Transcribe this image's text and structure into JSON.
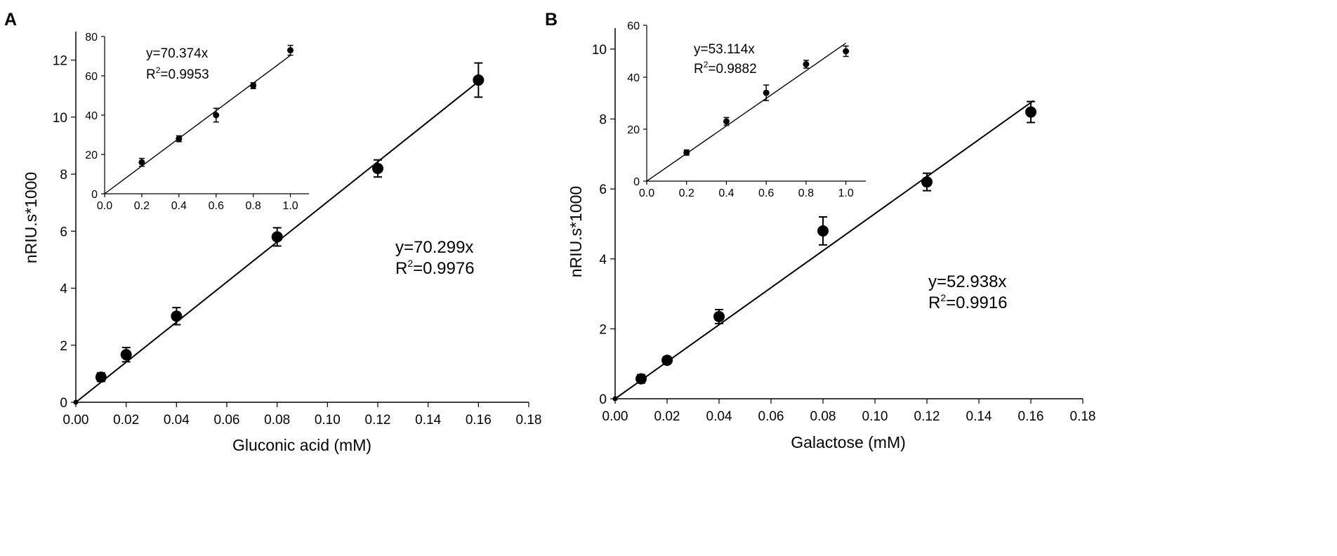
{
  "chart_data": [
    {
      "type": "scatter",
      "panel_label": "A",
      "xlabel": "Gluconic acid (mM)",
      "ylabel": "nRIU.s*1000",
      "xlim": [
        0.0,
        0.18
      ],
      "ylim": [
        0,
        13
      ],
      "x_ticks": [
        "0.00",
        "0.02",
        "0.04",
        "0.06",
        "0.08",
        "0.10",
        "0.12",
        "0.14",
        "0.16",
        "0.18"
      ],
      "y_ticks": [
        "0",
        "2",
        "4",
        "6",
        "8",
        "10",
        "12"
      ],
      "x_tick_values": [
        0,
        0.02,
        0.04,
        0.06,
        0.08,
        0.1,
        0.12,
        0.14,
        0.16,
        0.18
      ],
      "y_tick_values": [
        0,
        2,
        4,
        6,
        8,
        10,
        12
      ],
      "x": [
        0,
        0.01,
        0.02,
        0.04,
        0.08,
        0.12,
        0.16
      ],
      "y": [
        0,
        0.88,
        1.67,
        3.02,
        5.8,
        8.2,
        11.3
      ],
      "y_err": [
        0,
        0.15,
        0.25,
        0.3,
        0.32,
        0.3,
        0.6
      ],
      "fit": {
        "slope": 70.299,
        "x_range": [
          0,
          0.161
        ]
      },
      "equation": "y=70.299x",
      "r2_prefix": "R",
      "r2_sup": "2",
      "r2_value": "=0.9976",
      "inset": {
        "xlim": [
          0.0,
          1.1
        ],
        "ylim": [
          0,
          80
        ],
        "x_ticks": [
          "0.0",
          "0.2",
          "0.4",
          "0.6",
          "0.8",
          "1.0"
        ],
        "y_ticks": [
          "0",
          "20",
          "40",
          "60",
          "80"
        ],
        "x_tick_values": [
          0,
          0.2,
          0.4,
          0.6,
          0.8,
          1.0
        ],
        "y_tick_values": [
          0,
          20,
          40,
          60,
          80
        ],
        "x": [
          0.2,
          0.4,
          0.6,
          0.8,
          1.0
        ],
        "y": [
          16,
          28,
          40,
          55,
          73
        ],
        "y_err": [
          2,
          1.5,
          3.5,
          1.5,
          2.5
        ],
        "fit": {
          "slope": 70.374,
          "x_range": [
            0,
            1.0
          ]
        },
        "equation": "y=70.374x",
        "r2_prefix": "R",
        "r2_sup": "2",
        "r2_value": "=0.9953"
      }
    },
    {
      "type": "scatter",
      "panel_label": "B",
      "xlabel": "Galactose (mM)",
      "ylabel": "nRIU.s*1000",
      "xlim": [
        0.0,
        0.18
      ],
      "ylim": [
        0,
        10.6
      ],
      "x_ticks": [
        "0.00",
        "0.02",
        "0.04",
        "0.06",
        "0.08",
        "0.10",
        "0.12",
        "0.14",
        "0.16",
        "0.18"
      ],
      "y_ticks": [
        "0",
        "2",
        "4",
        "6",
        "8",
        "10"
      ],
      "x_tick_values": [
        0,
        0.02,
        0.04,
        0.06,
        0.08,
        0.1,
        0.12,
        0.14,
        0.16,
        0.18
      ],
      "y_tick_values": [
        0,
        2,
        4,
        6,
        8,
        10
      ],
      "x": [
        0,
        0.01,
        0.02,
        0.04,
        0.08,
        0.12,
        0.16
      ],
      "y": [
        0,
        0.57,
        1.1,
        2.35,
        4.8,
        6.2,
        8.2
      ],
      "y_err": [
        0,
        0.12,
        0.1,
        0.2,
        0.4,
        0.25,
        0.3
      ],
      "fit": {
        "slope": 52.938,
        "x_range": [
          0,
          0.161
        ]
      },
      "equation": "y=52.938x",
      "r2_prefix": "R",
      "r2_sup": "2",
      "r2_value": "=0.9916",
      "inset": {
        "xlim": [
          0.0,
          1.1
        ],
        "ylim": [
          0,
          60
        ],
        "x_ticks": [
          "0.0",
          "0.2",
          "0.4",
          "0.6",
          "0.8",
          "1.0"
        ],
        "y_ticks": [
          "0",
          "20",
          "40",
          "60"
        ],
        "x_tick_values": [
          0,
          0.2,
          0.4,
          0.6,
          0.8,
          1.0
        ],
        "y_tick_values": [
          0,
          20,
          40,
          60
        ],
        "x": [
          0.2,
          0.4,
          0.6,
          0.8,
          1.0
        ],
        "y": [
          11,
          23,
          34,
          45,
          50
        ],
        "y_err": [
          1,
          1.5,
          3,
          1.5,
          2
        ],
        "fit": {
          "slope": 53.114,
          "x_range": [
            0,
            1.0
          ]
        },
        "equation": "y=53.114x",
        "r2_prefix": "R",
        "r2_sup": "2",
        "r2_value": "=0.9882"
      }
    }
  ]
}
